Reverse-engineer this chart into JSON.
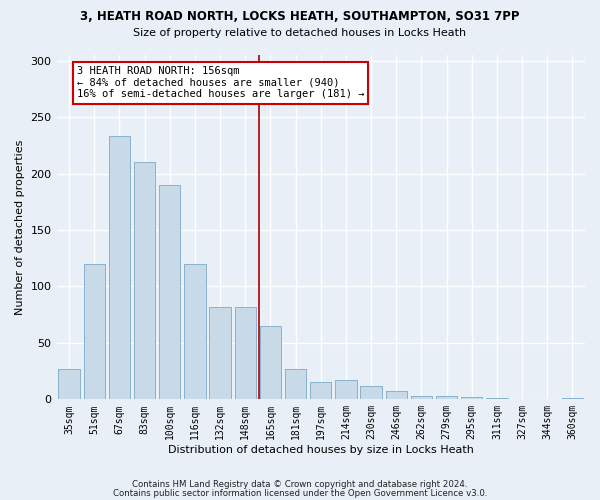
{
  "title1": "3, HEATH ROAD NORTH, LOCKS HEATH, SOUTHAMPTON, SO31 7PP",
  "title2": "Size of property relative to detached houses in Locks Heath",
  "xlabel": "Distribution of detached houses by size in Locks Heath",
  "ylabel": "Number of detached properties",
  "bins": [
    "35sqm",
    "51sqm",
    "67sqm",
    "83sqm",
    "100sqm",
    "116sqm",
    "132sqm",
    "148sqm",
    "165sqm",
    "181sqm",
    "197sqm",
    "214sqm",
    "230sqm",
    "246sqm",
    "262sqm",
    "279sqm",
    "295sqm",
    "311sqm",
    "327sqm",
    "344sqm",
    "360sqm"
  ],
  "values": [
    27,
    120,
    233,
    210,
    190,
    120,
    82,
    82,
    65,
    27,
    15,
    17,
    12,
    7,
    3,
    3,
    2,
    1,
    0,
    0,
    1
  ],
  "bar_color": "#c8d9e8",
  "bar_edge_color": "#7aaac8",
  "vline_color": "#aa0000",
  "vline_x": 7.53,
  "annotation_text": "3 HEATH ROAD NORTH: 156sqm\n← 84% of detached houses are smaller (940)\n16% of semi-detached houses are larger (181) →",
  "annotation_box_color": "#ffffff",
  "annotation_box_edge_color": "#cc0000",
  "footer1": "Contains HM Land Registry data © Crown copyright and database right 2024.",
  "footer2": "Contains public sector information licensed under the Open Government Licence v3.0.",
  "ylim": [
    0,
    305
  ],
  "background_color": "#e8eff6",
  "grid_color": "#ffffff",
  "title1_fontsize": 8.5,
  "title2_fontsize": 8.0,
  "ylabel_fontsize": 8,
  "xlabel_fontsize": 8,
  "tick_fontsize": 7,
  "annotation_fontsize": 7.5,
  "footer_fontsize": 6.2
}
